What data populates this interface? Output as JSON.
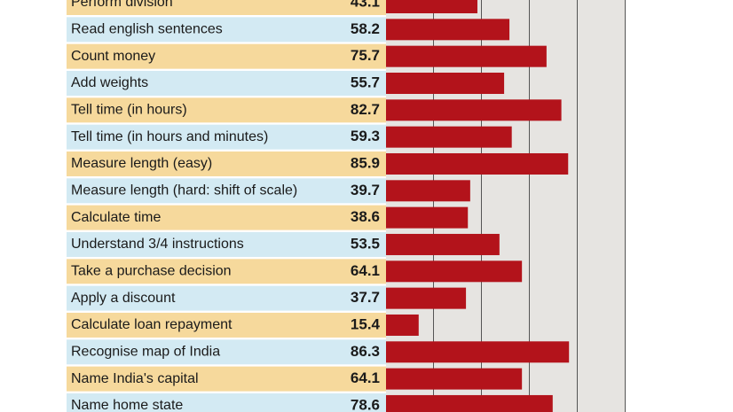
{
  "chart_data": {
    "type": "bar",
    "orientation": "horizontal",
    "categories": [
      "Perform division",
      "Read english sentences",
      "Count money",
      "Add weights",
      "Tell time (in hours)",
      "Tell time (in hours and minutes)",
      "Measure length (easy)",
      "Measure length (hard: shift of scale)",
      "Calculate time",
      "Understand 3/4 instructions",
      "Take a purchase decision",
      "Apply a discount",
      "Calculate loan repayment",
      "Recognise map of India",
      "Name India's capital",
      "Name home state"
    ],
    "values": [
      43.1,
      58.2,
      75.7,
      55.7,
      82.7,
      59.3,
      85.9,
      39.7,
      38.6,
      53.5,
      64.1,
      37.7,
      15.4,
      86.3,
      64.1,
      78.6
    ],
    "color": "#b3131b",
    "xlim": [
      0,
      113
    ]
  }
}
